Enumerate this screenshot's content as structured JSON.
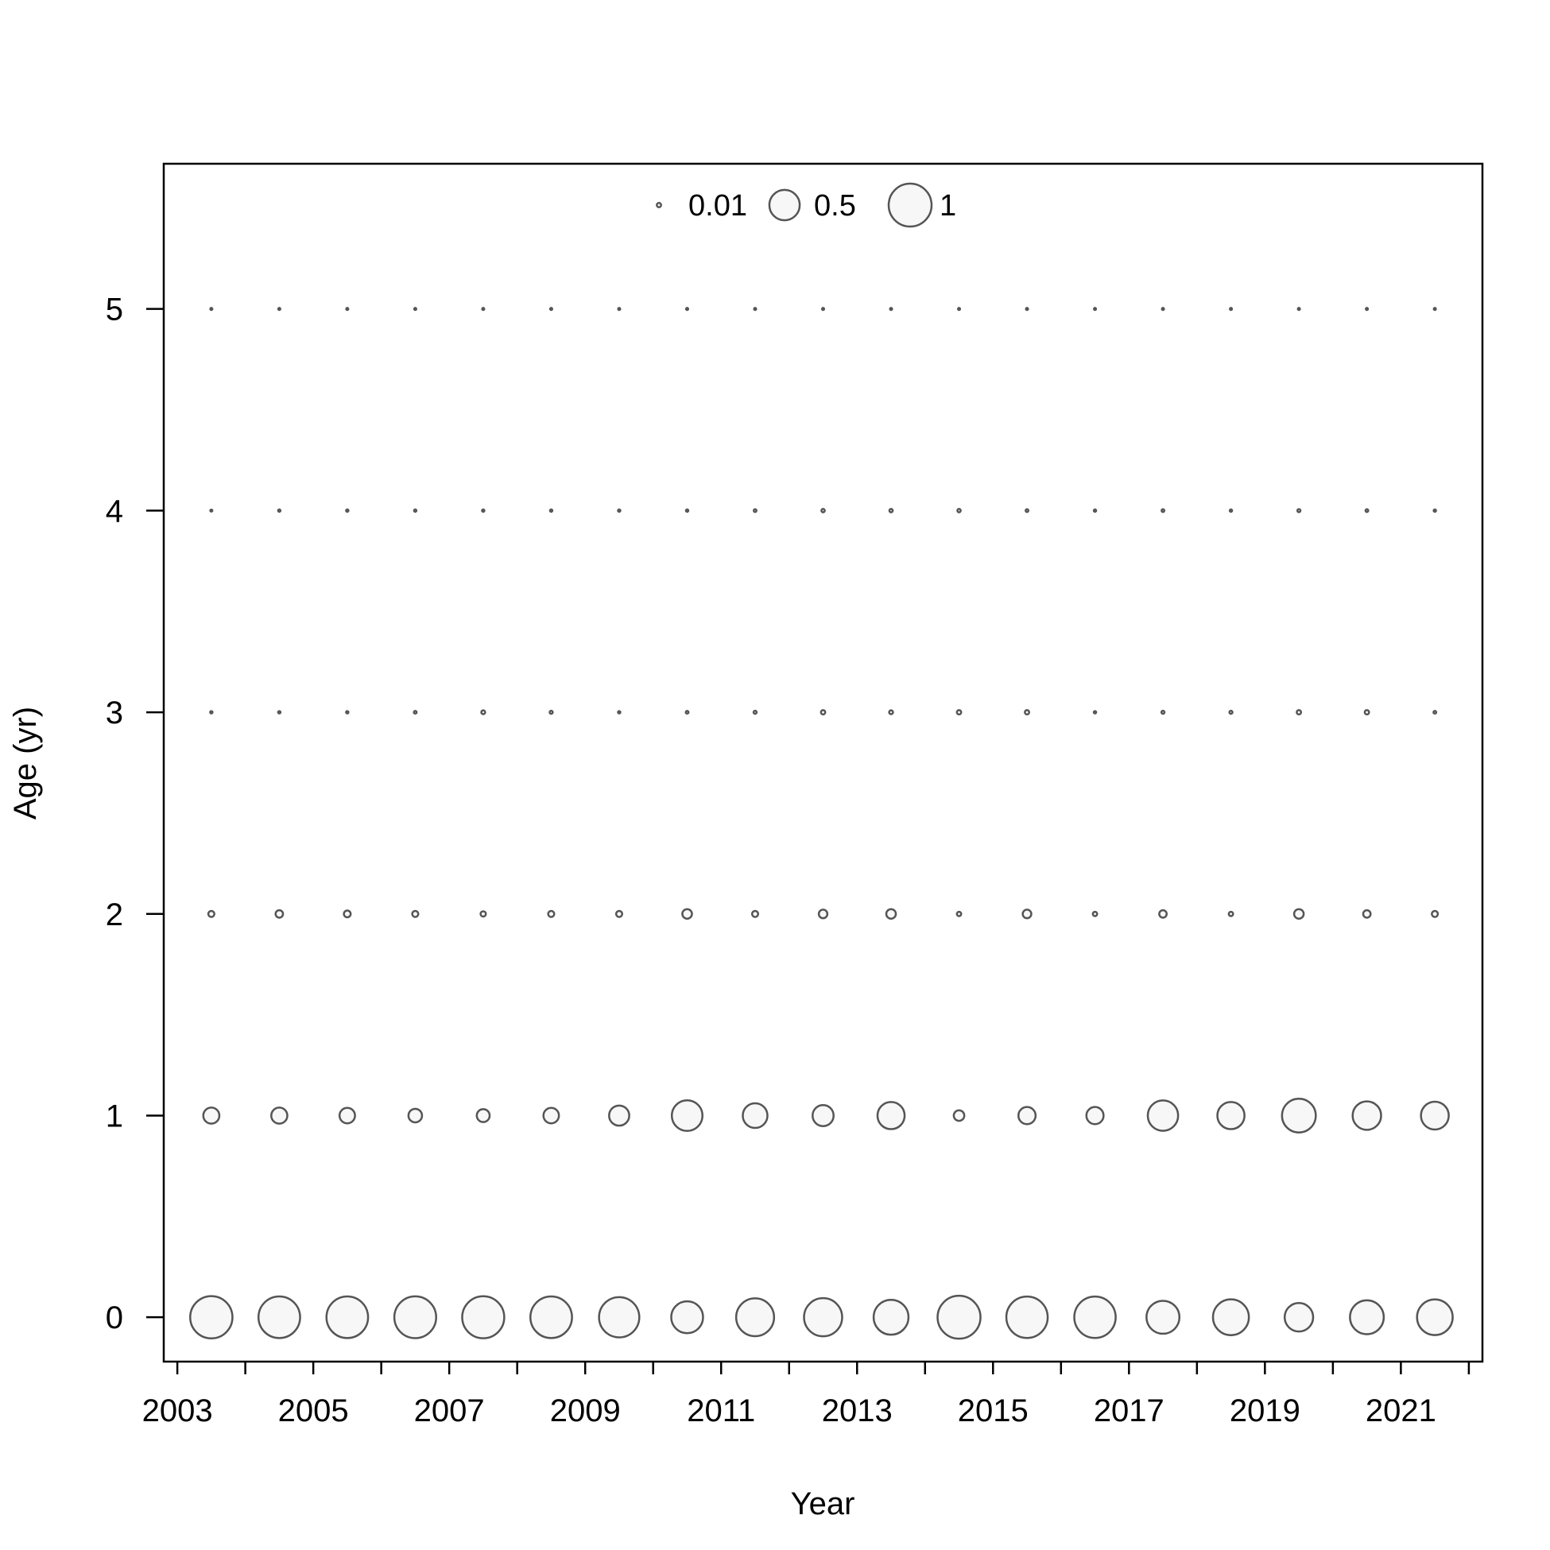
{
  "chart_data": {
    "type": "scatter",
    "subtype": "bubble",
    "title": "",
    "xlabel": "Year",
    "ylabel": "Age (yr)",
    "xlim": [
      2002.8,
      2022.2
    ],
    "ylim": [
      -0.22,
      5.72
    ],
    "x_ticks": [
      2003,
      2004,
      2005,
      2006,
      2007,
      2008,
      2009,
      2010,
      2011,
      2012,
      2013,
      2014,
      2015,
      2016,
      2017,
      2018,
      2019,
      2020,
      2021,
      2022
    ],
    "x_tick_labels": [
      {
        "value": 2003,
        "label": "2003"
      },
      {
        "value": 2005,
        "label": "2005"
      },
      {
        "value": 2007,
        "label": "2007"
      },
      {
        "value": 2009,
        "label": "2009"
      },
      {
        "value": 2011,
        "label": "2011"
      },
      {
        "value": 2013,
        "label": "2013"
      },
      {
        "value": 2015,
        "label": "2015"
      },
      {
        "value": 2017,
        "label": "2017"
      },
      {
        "value": 2019,
        "label": "2019"
      },
      {
        "value": 2021,
        "label": "2021"
      }
    ],
    "y_ticks": [
      {
        "value": 0,
        "label": "0"
      },
      {
        "value": 1,
        "label": "1"
      },
      {
        "value": 2,
        "label": "2"
      },
      {
        "value": 3,
        "label": "3"
      },
      {
        "value": 4,
        "label": "4"
      },
      {
        "value": 5,
        "label": "5"
      }
    ],
    "years": [
      2003.5,
      2004.5,
      2005.5,
      2006.5,
      2007.5,
      2008.5,
      2009.5,
      2010.5,
      2011.5,
      2012.5,
      2013.5,
      2014.5,
      2015.5,
      2016.5,
      2017.5,
      2018.5,
      2019.5,
      2020.5,
      2021.5
    ],
    "ages": [
      0,
      1,
      2,
      3,
      4,
      5
    ],
    "proportions": {
      "0": [
        0.97,
        0.94,
        0.94,
        0.95,
        0.96,
        0.94,
        0.88,
        0.55,
        0.78,
        0.79,
        0.66,
        1.0,
        0.93,
        0.93,
        0.59,
        0.7,
        0.44,
        0.62,
        0.69
      ],
      "1": [
        0.14,
        0.14,
        0.13,
        0.1,
        0.09,
        0.13,
        0.22,
        0.51,
        0.33,
        0.24,
        0.4,
        0.06,
        0.16,
        0.16,
        0.5,
        0.4,
        0.62,
        0.44,
        0.42
      ],
      "2": [
        0.02,
        0.03,
        0.025,
        0.02,
        0.015,
        0.02,
        0.02,
        0.05,
        0.02,
        0.04,
        0.05,
        0.01,
        0.04,
        0.01,
        0.03,
        0.01,
        0.05,
        0.03,
        0.02
      ],
      "3": [
        0.003,
        0.003,
        0.003,
        0.004,
        0.008,
        0.005,
        0.003,
        0.004,
        0.005,
        0.01,
        0.008,
        0.01,
        0.01,
        0.003,
        0.005,
        0.005,
        0.01,
        0.01,
        0.004
      ],
      "4": [
        0.002,
        0.003,
        0.003,
        0.003,
        0.003,
        0.003,
        0.003,
        0.003,
        0.004,
        0.006,
        0.006,
        0.006,
        0.004,
        0.003,
        0.004,
        0.003,
        0.005,
        0.004,
        0.003
      ],
      "5": [
        0.002,
        0.002,
        0.002,
        0.002,
        0.002,
        0.002,
        0.002,
        0.002,
        0.002,
        0.002,
        0.002,
        0.002,
        0.002,
        0.002,
        0.002,
        0.002,
        0.002,
        0.002,
        0.002
      ]
    },
    "legend": {
      "placement": "top-center",
      "entries": [
        {
          "value": 0.01,
          "label": "0.01"
        },
        {
          "value": 0.5,
          "label": "0.5"
        },
        {
          "value": 1,
          "label": "1"
        }
      ]
    },
    "bubble_fill": "#f7f7f7",
    "bubble_stroke": "#555555",
    "axis_color": "#000000",
    "grid": false
  }
}
